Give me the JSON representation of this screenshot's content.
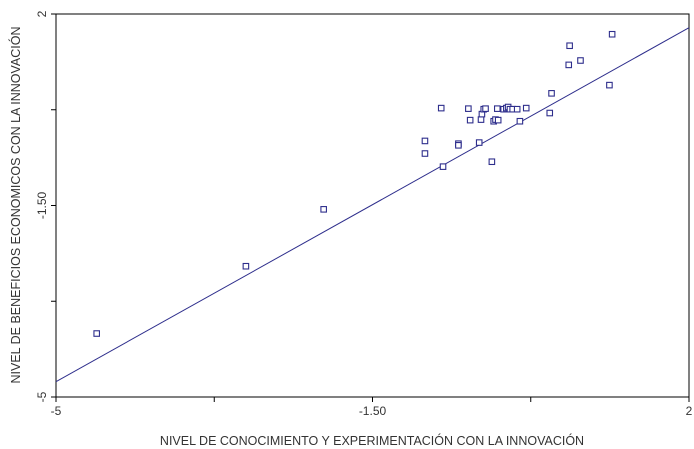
{
  "chart_data": {
    "type": "scatter",
    "title": "",
    "xlabel": "NIVEL DE CONOCIMIENTO Y EXPERIMENTACIÓN CON LA INNOVACIÓN",
    "ylabel": "NIVEL DE BENEFICIOS ECONOMICOS CON LA INNOVACIÓN",
    "xlim": [
      -5,
      2
    ],
    "ylim": [
      -5,
      2
    ],
    "x_ticks": [
      -5,
      -3.25,
      -1.5,
      0.25,
      2
    ],
    "x_tick_labels": [
      "-5",
      "",
      "-1.50",
      "",
      "2"
    ],
    "y_ticks": [
      -5,
      -3.25,
      -1.5,
      0.25,
      2
    ],
    "y_tick_labels": [
      "-5",
      "",
      "-1.50",
      "",
      "2"
    ],
    "grid": false,
    "legend": "none",
    "colors": {
      "points": "#2e2e8c",
      "fit_line": "#2e2e8c",
      "frame": "#000000"
    },
    "points": [
      {
        "x": -4.55,
        "y": -3.84
      },
      {
        "x": -2.9,
        "y": -2.61
      },
      {
        "x": -2.04,
        "y": -1.57
      },
      {
        "x": -0.92,
        "y": -0.32
      },
      {
        "x": -0.92,
        "y": -0.55
      },
      {
        "x": -0.74,
        "y": 0.28
      },
      {
        "x": -0.72,
        "y": -0.79
      },
      {
        "x": -0.55,
        "y": -0.37
      },
      {
        "x": -0.55,
        "y": -0.4
      },
      {
        "x": -0.44,
        "y": 0.27
      },
      {
        "x": -0.42,
        "y": 0.06
      },
      {
        "x": -0.32,
        "y": -0.35
      },
      {
        "x": -0.3,
        "y": 0.07
      },
      {
        "x": -0.29,
        "y": 0.17
      },
      {
        "x": -0.27,
        "y": 0.26
      },
      {
        "x": -0.25,
        "y": 0.27
      },
      {
        "x": -0.18,
        "y": -0.7
      },
      {
        "x": -0.16,
        "y": 0.04
      },
      {
        "x": -0.14,
        "y": 0.07
      },
      {
        "x": -0.12,
        "y": 0.27
      },
      {
        "x": -0.11,
        "y": 0.06
      },
      {
        "x": -0.05,
        "y": 0.26
      },
      {
        "x": -0.02,
        "y": 0.28
      },
      {
        "x": 0.0,
        "y": 0.3
      },
      {
        "x": 0.02,
        "y": 0.26
      },
      {
        "x": 0.05,
        "y": 0.26
      },
      {
        "x": 0.1,
        "y": 0.26
      },
      {
        "x": 0.13,
        "y": 0.04
      },
      {
        "x": 0.2,
        "y": 0.28
      },
      {
        "x": 0.46,
        "y": 0.19
      },
      {
        "x": 0.48,
        "y": 0.55
      },
      {
        "x": 0.67,
        "y": 1.07
      },
      {
        "x": 0.68,
        "y": 1.42
      },
      {
        "x": 0.8,
        "y": 1.15
      },
      {
        "x": 1.12,
        "y": 0.7
      },
      {
        "x": 1.15,
        "y": 1.63
      }
    ],
    "fit_line": {
      "x": [
        -5,
        2
      ],
      "y": [
        -4.72,
        1.75
      ]
    }
  }
}
